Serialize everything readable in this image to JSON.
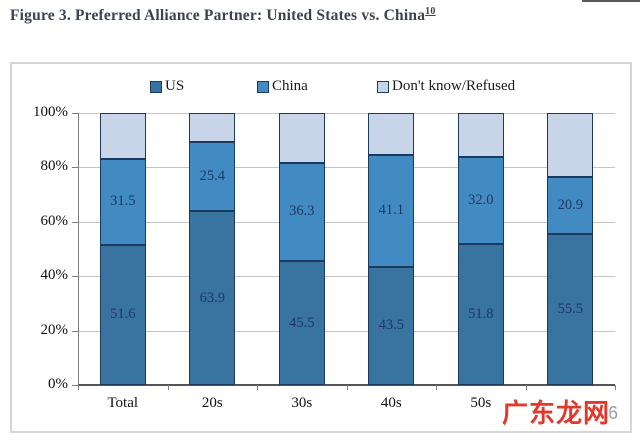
{
  "title": {
    "text": "Figure 3. Preferred Alliance Partner: United States vs. China",
    "footnote_ref": "10"
  },
  "chart_data": {
    "type": "bar",
    "subtype": "stacked-percent-column",
    "title": "",
    "xlabel": "",
    "ylabel": "",
    "ylim": [
      0,
      100
    ],
    "yticks": [
      "0%",
      "20%",
      "40%",
      "60%",
      "80%",
      "100%"
    ],
    "grid": true,
    "legend_position": "top",
    "categories": [
      "Total",
      "20s",
      "30s",
      "40s",
      "50s",
      ""
    ],
    "series": [
      {
        "name": "US",
        "color": "#38749f",
        "values": [
          51.6,
          63.9,
          45.5,
          43.5,
          51.8,
          55.5
        ],
        "labels_shown": true
      },
      {
        "name": "China",
        "color": "#418bc2",
        "values": [
          31.5,
          25.4,
          36.3,
          41.1,
          32.0,
          20.9
        ],
        "labels_shown": true
      },
      {
        "name": "Don't know/Refused",
        "color": "#c8d4e8",
        "values": [
          16.9,
          10.7,
          18.2,
          15.4,
          16.2,
          23.6
        ],
        "labels_shown": false
      }
    ]
  },
  "watermark": {
    "main": "广东龙网",
    "sub": "r86"
  },
  "colors": {
    "segment_border": "#1a3a60",
    "value_label": "#1f3864",
    "gridline": "#c3c3c3",
    "axis": "#7f7f7f",
    "frame_border": "#d6d6d6",
    "title_text": "#3a434f",
    "watermark_red": "#e2382b",
    "watermark_grey": "#9b9b9b"
  }
}
